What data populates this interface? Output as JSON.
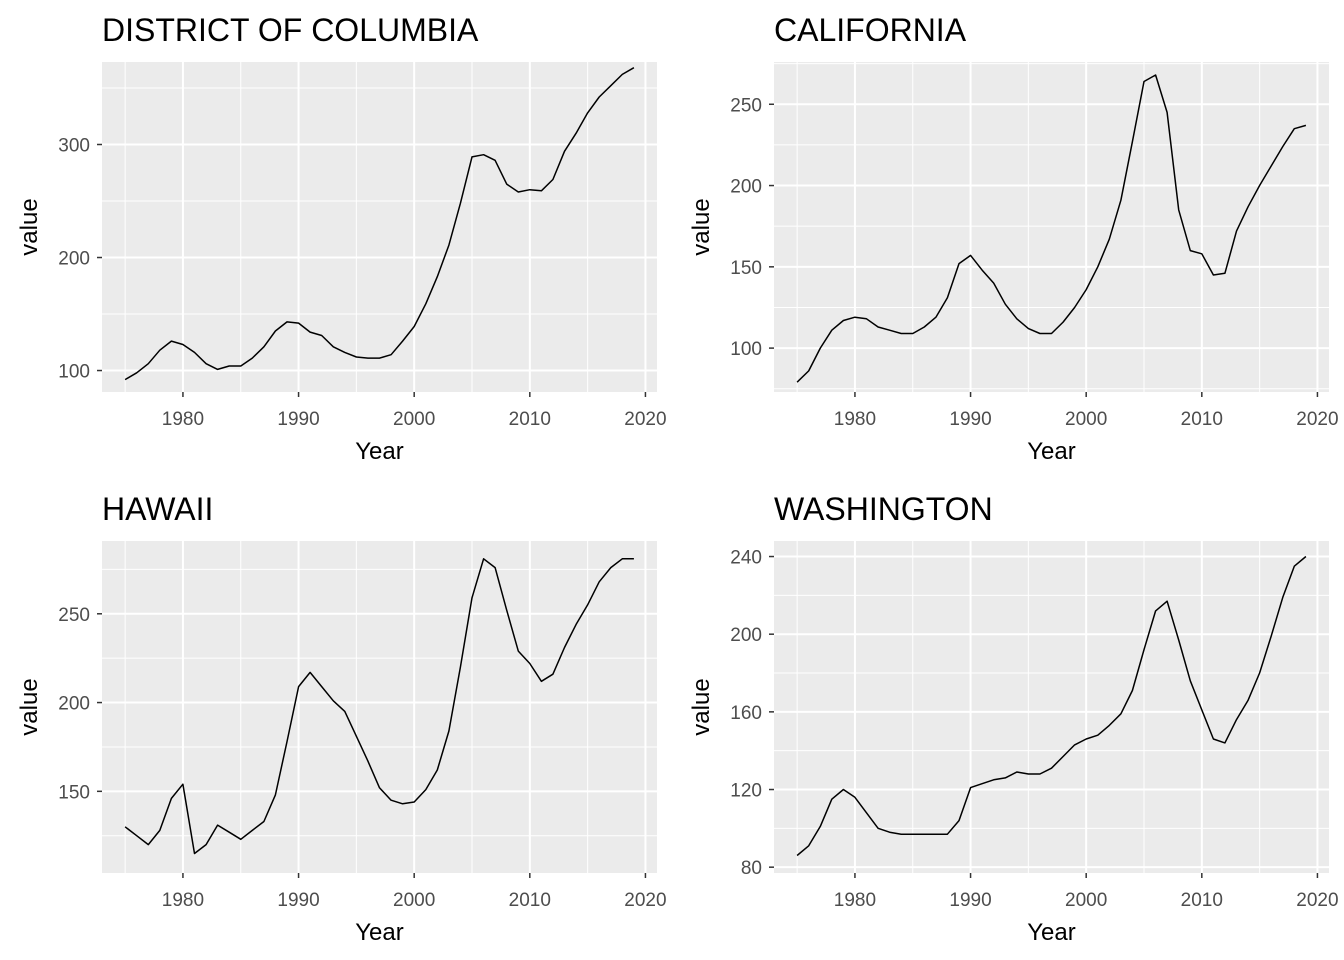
{
  "chart_data": [
    {
      "type": "line",
      "title": "DISTRICT OF COLUMBIA",
      "xlabel": "Year",
      "ylabel": "value",
      "xlim": [
        1973,
        2021
      ],
      "ylim": [
        81,
        373
      ],
      "x_ticks": [
        1980,
        1990,
        2000,
        2010,
        2020
      ],
      "y_ticks": [
        100,
        200,
        300
      ],
      "grid": true,
      "x": [
        1975,
        1976,
        1977,
        1978,
        1979,
        1980,
        1981,
        1982,
        1983,
        1984,
        1985,
        1986,
        1987,
        1988,
        1989,
        1990,
        1991,
        1992,
        1993,
        1994,
        1995,
        1996,
        1997,
        1998,
        1999,
        2000,
        2001,
        2002,
        2003,
        2004,
        2005,
        2006,
        2007,
        2008,
        2009,
        2010,
        2011,
        2012,
        2013,
        2014,
        2015,
        2016,
        2017,
        2018,
        2019
      ],
      "values": [
        92,
        98,
        106,
        118,
        126,
        123,
        116,
        106,
        101,
        104,
        104,
        111,
        121,
        135,
        143,
        142,
        134,
        131,
        121,
        116,
        112,
        111,
        111,
        114,
        126,
        139,
        159,
        183,
        211,
        248,
        289,
        291,
        286,
        265,
        258,
        260,
        259,
        269,
        294,
        310,
        328,
        342,
        352,
        362,
        368
      ]
    },
    {
      "type": "line",
      "title": "CALIFORNIA",
      "xlabel": "Year",
      "ylabel": "value",
      "xlim": [
        1973,
        2021
      ],
      "ylim": [
        73,
        276
      ],
      "x_ticks": [
        1980,
        1990,
        2000,
        2010,
        2020
      ],
      "y_ticks": [
        100,
        150,
        200,
        250
      ],
      "grid": true,
      "x": [
        1975,
        1976,
        1977,
        1978,
        1979,
        1980,
        1981,
        1982,
        1983,
        1984,
        1985,
        1986,
        1987,
        1988,
        1989,
        1990,
        1991,
        1992,
        1993,
        1994,
        1995,
        1996,
        1997,
        1998,
        1999,
        2000,
        2001,
        2002,
        2003,
        2004,
        2005,
        2006,
        2007,
        2008,
        2009,
        2010,
        2011,
        2012,
        2013,
        2014,
        2015,
        2016,
        2017,
        2018,
        2019
      ],
      "values": [
        79,
        86,
        100,
        111,
        117,
        119,
        118,
        113,
        111,
        109,
        109,
        113,
        119,
        131,
        152,
        157,
        148,
        140,
        127,
        118,
        112,
        109,
        109,
        116,
        125,
        136,
        150,
        167,
        191,
        227,
        264,
        268,
        245,
        185,
        160,
        158,
        145,
        146,
        172,
        187,
        200,
        212,
        224,
        235,
        237
      ]
    },
    {
      "type": "line",
      "title": "HAWAII",
      "xlabel": "Year",
      "ylabel": "value",
      "xlim": [
        1973,
        2021
      ],
      "ylim": [
        104,
        291
      ],
      "x_ticks": [
        1980,
        1990,
        2000,
        2010,
        2020
      ],
      "y_ticks": [
        150,
        200,
        250
      ],
      "grid": true,
      "x": [
        1975,
        1976,
        1977,
        1978,
        1979,
        1980,
        1981,
        1982,
        1983,
        1984,
        1985,
        1986,
        1987,
        1988,
        1989,
        1990,
        1991,
        1992,
        1993,
        1994,
        1995,
        1996,
        1997,
        1998,
        1999,
        2000,
        2001,
        2002,
        2003,
        2004,
        2005,
        2006,
        2007,
        2008,
        2009,
        2010,
        2011,
        2012,
        2013,
        2014,
        2015,
        2016,
        2017,
        2018,
        2019
      ],
      "values": [
        130,
        125,
        120,
        128,
        146,
        154,
        115,
        120,
        131,
        127,
        123,
        128,
        133,
        148,
        178,
        209,
        217,
        209,
        201,
        195,
        181,
        167,
        152,
        145,
        143,
        144,
        151,
        162,
        184,
        220,
        259,
        281,
        276,
        252,
        229,
        222,
        212,
        216,
        231,
        244,
        255,
        268,
        276,
        281,
        281
      ]
    },
    {
      "type": "line",
      "title": "WASHINGTON",
      "xlabel": "Year",
      "ylabel": "value",
      "xlim": [
        1973,
        2021
      ],
      "ylim": [
        77,
        248
      ],
      "x_ticks": [
        1980,
        1990,
        2000,
        2010,
        2020
      ],
      "y_ticks": [
        80,
        120,
        160,
        200,
        240
      ],
      "grid": true,
      "x": [
        1975,
        1976,
        1977,
        1978,
        1979,
        1980,
        1981,
        1982,
        1983,
        1984,
        1985,
        1986,
        1987,
        1988,
        1989,
        1990,
        1991,
        1992,
        1993,
        1994,
        1995,
        1996,
        1997,
        1998,
        1999,
        2000,
        2001,
        2002,
        2003,
        2004,
        2005,
        2006,
        2007,
        2008,
        2009,
        2010,
        2011,
        2012,
        2013,
        2014,
        2015,
        2016,
        2017,
        2018,
        2019
      ],
      "values": [
        86,
        91,
        101,
        115,
        120,
        116,
        108,
        100,
        98,
        97,
        97,
        97,
        97,
        97,
        104,
        121,
        123,
        125,
        126,
        129,
        128,
        128,
        131,
        137,
        143,
        146,
        148,
        153,
        159,
        171,
        192,
        212,
        217,
        197,
        176,
        161,
        146,
        144,
        156,
        166,
        180,
        199,
        219,
        235,
        240
      ]
    }
  ]
}
